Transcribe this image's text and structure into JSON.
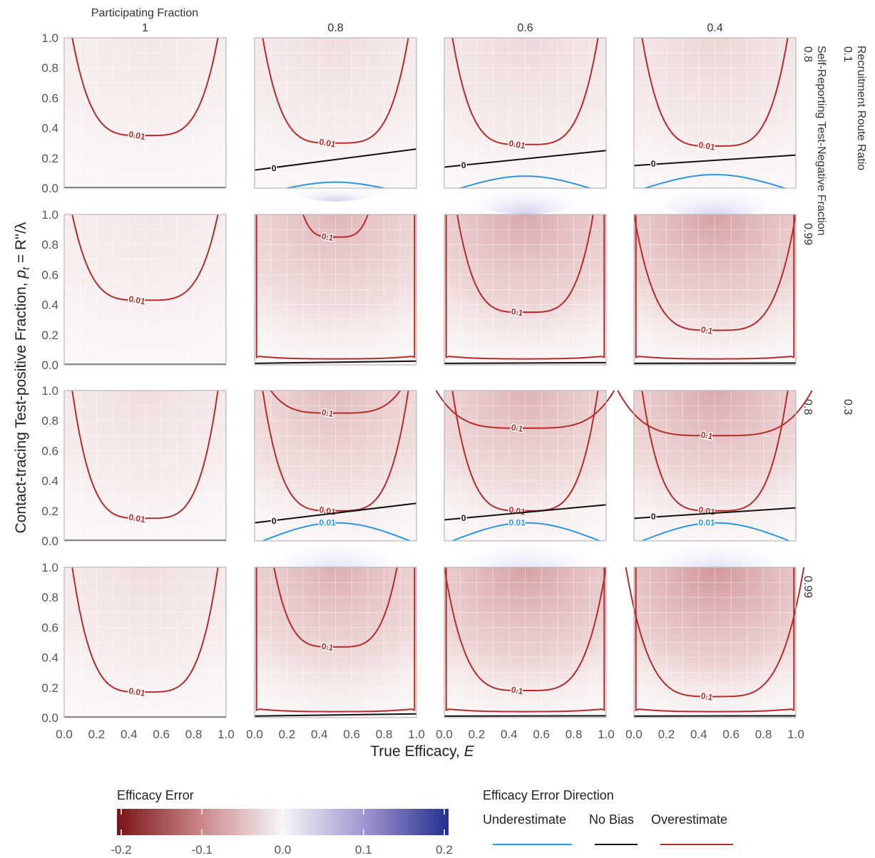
{
  "chart_data": {
    "type": "heatmap",
    "facet_rows": {
      "group_label": "Recruitment Route Ratio",
      "subgroup_label": "Self-Reporting Test-Negative Fraction",
      "rows": [
        {
          "ratio": "0.1",
          "test_negative": "0.8"
        },
        {
          "ratio": "",
          "test_negative": "0.99"
        },
        {
          "ratio": "0.3",
          "test_negative": "0.8"
        },
        {
          "ratio": "",
          "test_negative": "0.99"
        }
      ]
    },
    "facet_columns": {
      "label": "Participating Fraction",
      "values": [
        "1",
        "0.8",
        "0.6",
        "0.4"
      ]
    },
    "x_axis": {
      "label": "True Efficacy, ",
      "label_var": "E",
      "range": [
        0,
        1
      ],
      "ticks": [
        "0.0",
        "0.2",
        "0.4",
        "0.6",
        "0.8",
        "1.0"
      ]
    },
    "y_axis": {
      "label": "Contact-tracing Test-positive Fraction, ",
      "label_var": "p",
      "label_sub": "t",
      "label_tail": " = R''/λ",
      "range": [
        0,
        1
      ],
      "ticks": [
        "0.0",
        "0.2",
        "0.4",
        "0.6",
        "0.8",
        "1.0"
      ]
    },
    "contour_labels": {
      "over_small": "0.01",
      "over_large": "0.1",
      "zero": "0",
      "under_small": "0.01"
    },
    "colorbar": {
      "title": "Efficacy Error",
      "range": [
        -0.2,
        0.2
      ],
      "ticks": [
        "-0.2",
        "-0.1",
        "0.0",
        "0.1",
        "0.2"
      ]
    },
    "direction_legend": {
      "title": "Efficacy Error Direction",
      "items": [
        {
          "label": "Underestimate",
          "color": "#2e94e0"
        },
        {
          "label": "No Bias",
          "color": "#111111"
        },
        {
          "label": "Overestimate",
          "color": "#b52a2a"
        }
      ]
    },
    "panels": [
      [
        {
          "intensity": 0.1,
          "curves": [
            {
              "kind": "over",
              "label": "small",
              "min": 0.35
            }
          ],
          "zero": {
            "kind": "flat"
          }
        },
        {
          "intensity": 0.15,
          "curves": [
            {
              "kind": "over",
              "label": "small",
              "min": 0.3
            }
          ],
          "zero": {
            "y0": 0.12,
            "y1": 0.26
          },
          "under": {
            "peak": 0.04,
            "x0": 0.2,
            "x1": 0.8
          }
        },
        {
          "intensity": 0.18,
          "curves": [
            {
              "kind": "over",
              "label": "small",
              "min": 0.29
            }
          ],
          "zero": {
            "y0": 0.14,
            "y1": 0.25
          },
          "under": {
            "peak": 0.08,
            "x0": 0.1,
            "x1": 0.9
          }
        },
        {
          "intensity": 0.2,
          "curves": [
            {
              "kind": "over",
              "label": "small",
              "min": 0.28
            }
          ],
          "zero": {
            "y0": 0.15,
            "y1": 0.22
          },
          "under": {
            "peak": 0.09,
            "x0": 0.07,
            "x1": 0.93
          }
        }
      ],
      [
        {
          "intensity": 0.1,
          "curves": [
            {
              "kind": "over",
              "label": "small",
              "min": 0.43
            }
          ],
          "zero": {
            "kind": "flat"
          }
        },
        {
          "intensity": 0.38,
          "curves": [
            {
              "kind": "frame",
              "label": "none"
            },
            {
              "kind": "over",
              "label": "large",
              "min": 0.85,
              "width": 0.2
            }
          ],
          "zero": {
            "y0": 0.01,
            "y1": 0.025
          }
        },
        {
          "intensity": 0.45,
          "curves": [
            {
              "kind": "frame",
              "label": "none"
            },
            {
              "kind": "over",
              "label": "large",
              "min": 0.35,
              "width": 0.42
            }
          ],
          "zero": {
            "y0": 0.01,
            "y1": 0.015
          }
        },
        {
          "intensity": 0.5,
          "curves": [
            {
              "kind": "frame",
              "label": "none"
            },
            {
              "kind": "over",
              "label": "large",
              "min": 0.23,
              "width": 0.5
            }
          ],
          "zero": {
            "y0": 0.01,
            "y1": 0.012
          }
        }
      ],
      [
        {
          "intensity": 0.15,
          "curves": [
            {
              "kind": "over",
              "label": "small",
              "min": 0.15
            }
          ],
          "zero": {
            "kind": "flat"
          }
        },
        {
          "intensity": 0.35,
          "curves": [
            {
              "kind": "over",
              "label": "small",
              "min": 0.2
            },
            {
              "kind": "over",
              "label": "large",
              "min": 0.85,
              "width": 0.4
            }
          ],
          "zero": {
            "y0": 0.12,
            "y1": 0.25
          },
          "under": {
            "peak": 0.12,
            "x0": 0.05,
            "x1": 0.96,
            "label": true
          }
        },
        {
          "intensity": 0.4,
          "curves": [
            {
              "kind": "over",
              "label": "small",
              "min": 0.2
            },
            {
              "kind": "over",
              "label": "large",
              "min": 0.75,
              "width": 0.55
            }
          ],
          "zero": {
            "y0": 0.14,
            "y1": 0.24
          },
          "under": {
            "peak": 0.12,
            "x0": 0.05,
            "x1": 0.96,
            "label": true
          }
        },
        {
          "intensity": 0.45,
          "curves": [
            {
              "kind": "over",
              "label": "small",
              "min": 0.2
            },
            {
              "kind": "over",
              "label": "large",
              "min": 0.7,
              "width": 0.6
            }
          ],
          "zero": {
            "y0": 0.15,
            "y1": 0.22
          },
          "under": {
            "peak": 0.12,
            "x0": 0.05,
            "x1": 0.96,
            "label": true
          }
        }
      ],
      [
        {
          "intensity": 0.15,
          "curves": [
            {
              "kind": "over",
              "label": "small",
              "min": 0.17
            }
          ],
          "zero": {
            "kind": "flat"
          }
        },
        {
          "intensity": 0.42,
          "curves": [
            {
              "kind": "frame",
              "label": "none"
            },
            {
              "kind": "over",
              "label": "large",
              "min": 0.47,
              "width": 0.38
            }
          ],
          "zero": {
            "y0": 0.01,
            "y1": 0.025
          }
        },
        {
          "intensity": 0.5,
          "curves": [
            {
              "kind": "frame",
              "label": "none"
            },
            {
              "kind": "over",
              "label": "large",
              "min": 0.18,
              "width": 0.5
            }
          ],
          "zero": {
            "y0": 0.01,
            "y1": 0.012
          }
        },
        {
          "intensity": 0.56,
          "curves": [
            {
              "kind": "frame",
              "label": "none"
            },
            {
              "kind": "over",
              "label": "large",
              "min": 0.14,
              "width": 0.55
            }
          ],
          "zero": {
            "y0": 0.01,
            "y1": 0.012
          }
        }
      ]
    ]
  }
}
